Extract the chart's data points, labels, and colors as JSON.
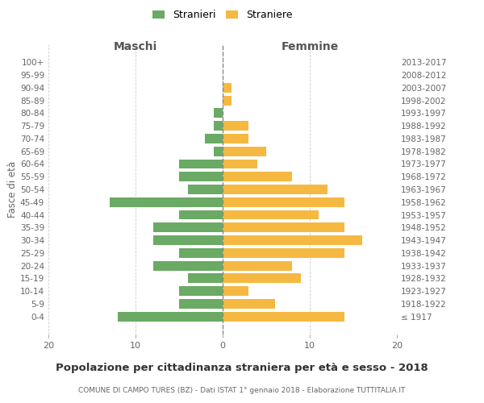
{
  "age_groups": [
    "100+",
    "95-99",
    "90-94",
    "85-89",
    "80-84",
    "75-79",
    "70-74",
    "65-69",
    "60-64",
    "55-59",
    "50-54",
    "45-49",
    "40-44",
    "35-39",
    "30-34",
    "25-29",
    "20-24",
    "15-19",
    "10-14",
    "5-9",
    "0-4"
  ],
  "birth_years": [
    "≤ 1917",
    "1918-1922",
    "1923-1927",
    "1928-1932",
    "1933-1937",
    "1938-1942",
    "1943-1947",
    "1948-1952",
    "1953-1957",
    "1958-1962",
    "1963-1967",
    "1968-1972",
    "1973-1977",
    "1978-1982",
    "1983-1987",
    "1988-1992",
    "1993-1997",
    "1998-2002",
    "2003-2007",
    "2008-2012",
    "2013-2017"
  ],
  "maschi": [
    0,
    0,
    0,
    0,
    1,
    1,
    2,
    1,
    5,
    5,
    4,
    13,
    5,
    8,
    8,
    5,
    8,
    4,
    5,
    5,
    12
  ],
  "femmine": [
    0,
    0,
    1,
    1,
    0,
    3,
    3,
    5,
    4,
    8,
    12,
    14,
    11,
    14,
    16,
    14,
    8,
    9,
    3,
    6,
    14
  ],
  "male_color": "#6aaa64",
  "female_color": "#f5b942",
  "title": "Popolazione per cittadinanza straniera per età e sesso - 2018",
  "subtitle": "COMUNE DI CAMPO TURES (BZ) - Dati ISTAT 1° gennaio 2018 - Elaborazione TUTTITALIA.IT",
  "legend_male": "Stranieri",
  "legend_female": "Straniere",
  "xlabel_left": "Maschi",
  "xlabel_right": "Femmine",
  "ylabel_left": "Fasce di età",
  "xlim": 20,
  "background_color": "#ffffff",
  "grid_color": "#cccccc"
}
